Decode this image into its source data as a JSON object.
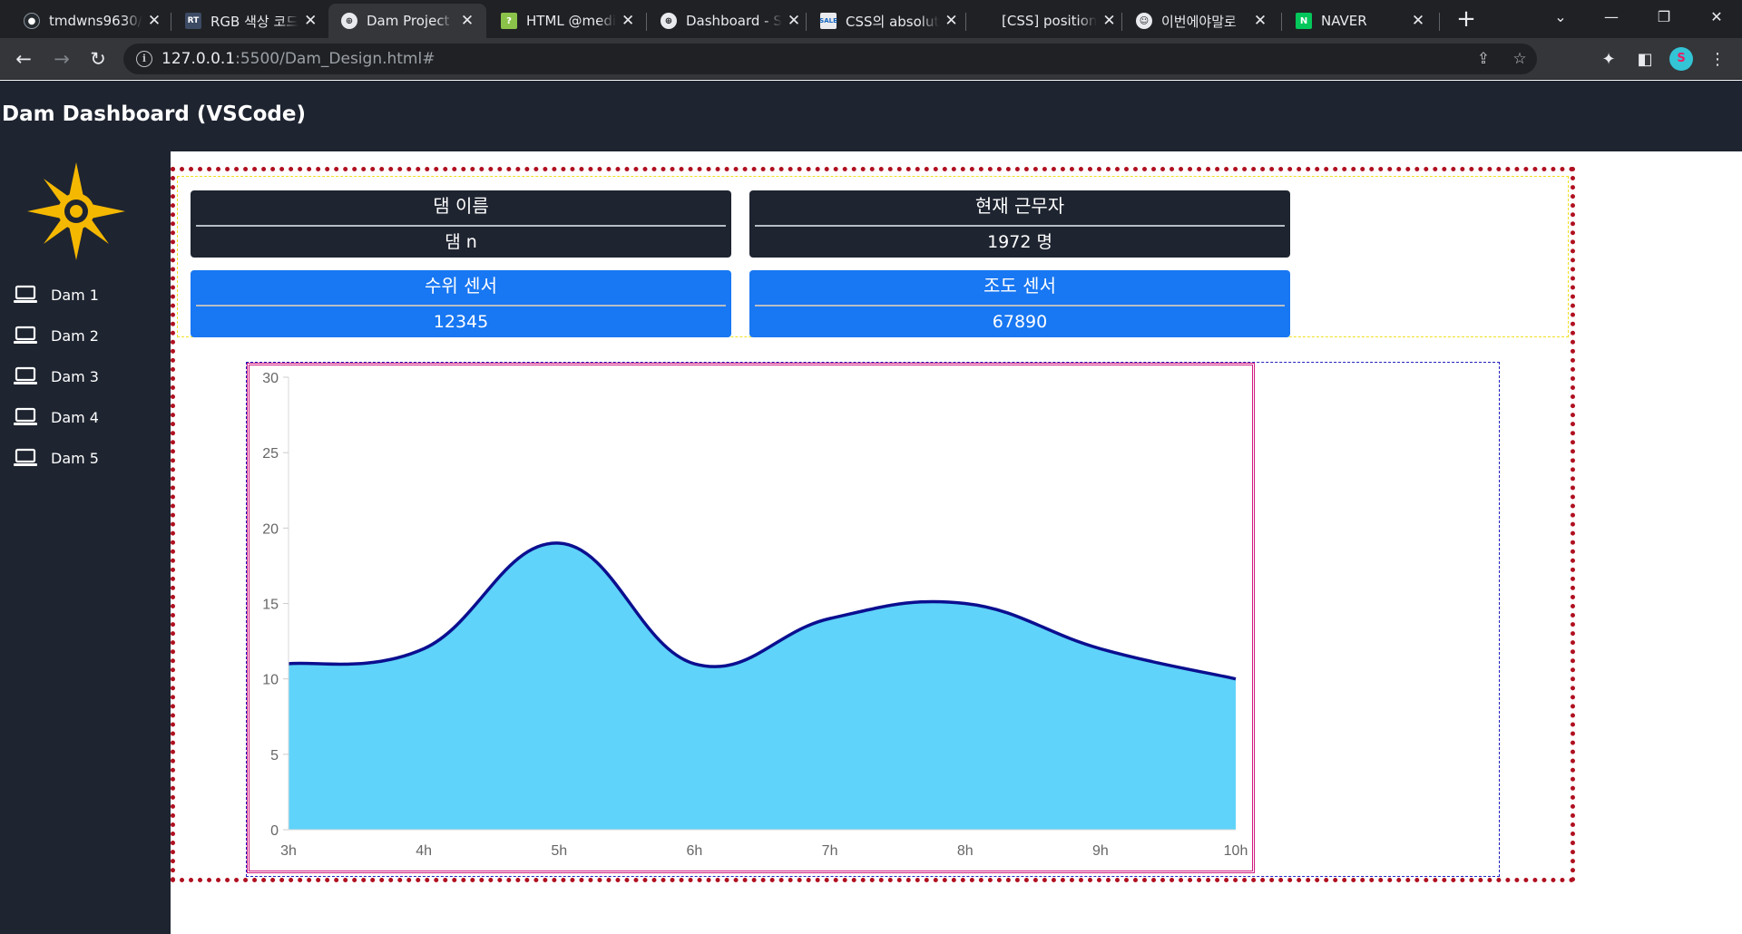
{
  "browser": {
    "tabs": [
      {
        "title": "tmdwns9630/",
        "icon": "github-icon"
      },
      {
        "title": "RGB 색상 코드",
        "icon": "rt-icon"
      },
      {
        "title": "Dam Project",
        "icon": "globe-icon",
        "active": true
      },
      {
        "title": "HTML @medi",
        "icon": "question-icon"
      },
      {
        "title": "Dashboard - S",
        "icon": "globe-icon"
      },
      {
        "title": "CSS의 absolut",
        "icon": "sale-icon"
      },
      {
        "title": "[CSS] position",
        "icon": "none"
      },
      {
        "title": "이번에야말로",
        "icon": "ghost-icon"
      },
      {
        "title": "NAVER",
        "icon": "naver-icon"
      }
    ],
    "url_host": "127.0.0.1",
    "url_path": ":5500/Dam_Design.html#",
    "profile_initial": "S"
  },
  "page": {
    "title": "Dam Dashboard (VSCode)"
  },
  "sidebar": {
    "items": [
      {
        "label": "Dam 1"
      },
      {
        "label": "Dam 2"
      },
      {
        "label": "Dam 3"
      },
      {
        "label": "Dam 4"
      },
      {
        "label": "Dam 5"
      }
    ]
  },
  "cards": [
    {
      "label": "댐 이름",
      "value": "댐 n",
      "theme": "dark"
    },
    {
      "label": "현재 근무자",
      "value": "1972 명",
      "theme": "dark"
    },
    {
      "label": "수위 센서",
      "value": "12345",
      "theme": "blue"
    },
    {
      "label": "조도 센서",
      "value": "67890",
      "theme": "blue"
    }
  ],
  "colors": {
    "header_bg": "#1e2430",
    "card_blue": "#1877f2",
    "area_fill": "#5fd3f9",
    "area_line": "#0b0f8f",
    "logo": "#f5b800"
  },
  "chart_data": {
    "type": "area",
    "categories": [
      "3h",
      "4h",
      "5h",
      "6h",
      "7h",
      "8h",
      "9h",
      "10h"
    ],
    "series": [
      {
        "values": [
          11,
          12,
          19,
          11,
          14,
          15,
          12,
          10
        ]
      }
    ],
    "ylim": [
      0,
      30
    ],
    "yticks": [
      0,
      5,
      10,
      15,
      20,
      25,
      30
    ],
    "title": "",
    "xlabel": "",
    "ylabel": "",
    "grid": false,
    "legend": "none",
    "smooth": true
  }
}
